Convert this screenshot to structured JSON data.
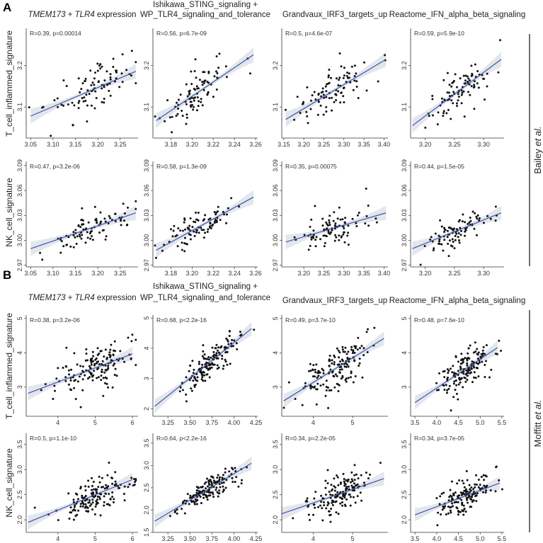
{
  "figure": {
    "letters": [
      "A",
      "B"
    ],
    "side_labels": [
      {
        "name": "Bailey",
        "suffix": "et al."
      },
      {
        "name": "Moffitt",
        "suffix": "et al."
      }
    ],
    "colors": {
      "point": "#111111",
      "line": "#3a55b4",
      "band": "#e3e6ea",
      "axis": "#333333"
    }
  },
  "chart_data": [
    {
      "type": "scatter",
      "section": "A",
      "row": 0,
      "col": 0,
      "title_parts": [
        {
          "text": "TMEM173",
          "italic": true
        },
        {
          "text": " + ",
          "italic": false
        },
        {
          "text": "TLR4",
          "italic": true
        },
        {
          "text": " expression",
          "italic": false
        }
      ],
      "ylabel": "T_cell_inflammed_signature",
      "annotation": "R=0.39, p=0.00014",
      "xlim": [
        3.04,
        3.29
      ],
      "ylim": [
        3.025,
        3.29
      ],
      "xticks": [
        "3.05",
        "3.10",
        "3.15",
        "3.20",
        "3.25"
      ],
      "yticks": [
        "3.1",
        "3.2"
      ],
      "fit": [
        [
          3.05,
          3.078
        ],
        [
          3.285,
          3.186
        ]
      ],
      "n": 90,
      "seed": 11,
      "spread": 0.055,
      "xcenter": 3.19,
      "xsd": 0.05
    },
    {
      "type": "scatter",
      "section": "A",
      "row": 0,
      "col": 1,
      "title_lines": [
        "Ishikawa_STING_signaling +",
        "WP_TLR4_signaling_and_tolerance"
      ],
      "ylabel": "",
      "annotation": "R=0.56, p=6.7e-09",
      "xlim": [
        3.163,
        3.262
      ],
      "ylim": [
        3.025,
        3.29
      ],
      "xticks": [
        "3.18",
        "3.20",
        "3.22",
        "3.24",
        "3.26"
      ],
      "yticks": [
        "3.1",
        "3.2"
      ],
      "fit": [
        [
          3.166,
          3.067
        ],
        [
          3.258,
          3.226
        ]
      ],
      "n": 90,
      "seed": 22,
      "spread": 0.045,
      "xcenter": 3.205,
      "xsd": 0.016
    },
    {
      "type": "scatter",
      "section": "A",
      "row": 0,
      "col": 2,
      "title_lines": [
        "Grandvaux_IRF3_targets_up"
      ],
      "ylabel": "",
      "annotation": "R=0.5, p=4.6e-07",
      "xlim": [
        3.145,
        3.41
      ],
      "ylim": [
        3.025,
        3.29
      ],
      "xticks": [
        "3.15",
        "3.20",
        "3.25",
        "3.30",
        "3.35",
        "3.40"
      ],
      "yticks": [
        "3.1",
        "3.2"
      ],
      "fit": [
        [
          3.155,
          3.07
        ],
        [
          3.405,
          3.215
        ]
      ],
      "n": 90,
      "seed": 33,
      "spread": 0.05,
      "xcenter": 3.27,
      "xsd": 0.045
    },
    {
      "type": "scatter",
      "section": "A",
      "row": 0,
      "col": 3,
      "title_lines": [
        "Reactome_IFN_alpha_beta_signaling"
      ],
      "ylabel": "",
      "annotation": "R=0.59, p=5.9e-10",
      "xlim": [
        3.175,
        3.335
      ],
      "ylim": [
        3.025,
        3.29
      ],
      "xticks": [
        "3.20",
        "3.25",
        "3.30"
      ],
      "yticks": [
        "3.1",
        "3.2"
      ],
      "fit": [
        [
          3.178,
          3.055
        ],
        [
          3.33,
          3.215
        ]
      ],
      "n": 90,
      "seed": 44,
      "spread": 0.045,
      "xcenter": 3.26,
      "xsd": 0.028
    },
    {
      "type": "scatter",
      "section": "A",
      "row": 1,
      "col": 0,
      "ylabel": "NK_cell_signature",
      "annotation": "R=0.47, p=3.2e-06",
      "xlim": [
        3.04,
        3.29
      ],
      "ylim": [
        2.968,
        3.095
      ],
      "xticks": [
        "3.05",
        "3.10",
        "3.15",
        "3.20",
        "3.25"
      ],
      "yticks": [
        "2.97",
        "3.00",
        "3.03",
        "3.06",
        "3.09"
      ],
      "fit": [
        [
          3.05,
          2.99
        ],
        [
          3.285,
          3.033
        ]
      ],
      "n": 90,
      "seed": 55,
      "spread": 0.018,
      "xcenter": 3.19,
      "xsd": 0.05
    },
    {
      "type": "scatter",
      "section": "A",
      "row": 1,
      "col": 1,
      "ylabel": "",
      "annotation": "R=0.58, p=1.3e-09",
      "xlim": [
        3.163,
        3.262
      ],
      "ylim": [
        2.968,
        3.095
      ],
      "xticks": [
        "3.18",
        "3.20",
        "3.22",
        "3.24",
        "3.26"
      ],
      "yticks": [
        "2.97",
        "3.00",
        "3.03",
        "3.06",
        "3.09"
      ],
      "fit": [
        [
          3.166,
          2.988
        ],
        [
          3.258,
          3.052
        ]
      ],
      "n": 90,
      "seed": 66,
      "spread": 0.017,
      "xcenter": 3.205,
      "xsd": 0.016
    },
    {
      "type": "scatter",
      "section": "A",
      "row": 1,
      "col": 2,
      "ylabel": "",
      "annotation": "R=0.35, p=0.00075",
      "xlim": [
        3.145,
        3.41
      ],
      "ylim": [
        2.968,
        3.095
      ],
      "xticks": [
        "3.20",
        "3.25",
        "3.30",
        "3.35",
        "3.40"
      ],
      "yticks": [
        "2.97",
        "3.00",
        "3.03",
        "3.06",
        "3.09"
      ],
      "fit": [
        [
          3.155,
          2.998
        ],
        [
          3.405,
          3.033
        ]
      ],
      "n": 90,
      "seed": 77,
      "spread": 0.019,
      "xcenter": 3.27,
      "xsd": 0.045
    },
    {
      "type": "scatter",
      "section": "A",
      "row": 1,
      "col": 3,
      "ylabel": "",
      "annotation": "R=0.44, p=1.5e-05",
      "xlim": [
        3.175,
        3.335
      ],
      "ylim": [
        2.968,
        3.095
      ],
      "xticks": [
        "3.20",
        "3.25",
        "3.30"
      ],
      "yticks": [
        "2.97",
        "3.00",
        "3.03",
        "3.06",
        "3.09"
      ],
      "fit": [
        [
          3.178,
          2.99
        ],
        [
          3.33,
          3.033
        ]
      ],
      "n": 90,
      "seed": 88,
      "spread": 0.017,
      "xcenter": 3.26,
      "xsd": 0.028
    },
    {
      "type": "scatter",
      "section": "B",
      "row": 2,
      "col": 0,
      "title_parts": [
        {
          "text": "TMEM173",
          "italic": true
        },
        {
          "text": " + ",
          "italic": false
        },
        {
          "text": "TLR4",
          "italic": true
        },
        {
          "text": " expression",
          "italic": false
        }
      ],
      "ylabel": "T_cell_inflammed_signature",
      "annotation": "R=0.38, p=3.2e-06",
      "xlim": [
        3.15,
        6.15
      ],
      "ylim": [
        2.15,
        5.1
      ],
      "xticks": [
        "4",
        "5",
        "6"
      ],
      "yticks": [
        "3",
        "4",
        "5"
      ],
      "fit": [
        [
          3.2,
          2.82
        ],
        [
          6.0,
          3.97
        ]
      ],
      "n": 150,
      "seed": 99,
      "spread": 0.6,
      "xcenter": 5.0,
      "xsd": 0.5
    },
    {
      "type": "scatter",
      "section": "B",
      "row": 2,
      "col": 1,
      "title_lines": [
        "Ishikawa_STING_signaling +",
        "WP_TLR4_signaling_and_tolerance"
      ],
      "ylabel": "",
      "annotation": "R=0.68, p<2.2e-16",
      "xlim": [
        3.08,
        4.27
      ],
      "ylim": [
        1.75,
        5.1
      ],
      "xticks": [
        "3.25",
        "3.50",
        "3.75",
        "4.00",
        "4.25"
      ],
      "yticks": [
        "2",
        "3",
        "4",
        "5"
      ],
      "fit": [
        [
          3.1,
          2.08
        ],
        [
          4.2,
          4.65
        ]
      ],
      "n": 150,
      "seed": 111,
      "spread": 0.45,
      "xcenter": 3.72,
      "xsd": 0.17
    },
    {
      "type": "scatter",
      "section": "B",
      "row": 2,
      "col": 2,
      "title_lines": [
        "Grandvaux_IRF3_targets_up"
      ],
      "ylabel": "",
      "annotation": "R=0.49, p=3.7e-10",
      "xlim": [
        3.2,
        5.9
      ],
      "ylim": [
        2.15,
        5.1
      ],
      "xticks": [
        "4",
        "5"
      ],
      "yticks": [
        "3",
        "4",
        "5"
      ],
      "fit": [
        [
          3.25,
          2.6
        ],
        [
          5.8,
          4.42
        ]
      ],
      "n": 150,
      "seed": 122,
      "spread": 0.55,
      "xcenter": 4.6,
      "xsd": 0.4
    },
    {
      "type": "scatter",
      "section": "B",
      "row": 2,
      "col": 3,
      "title_lines": [
        "Reactome_IFN_alpha_beta_signaling"
      ],
      "ylabel": "",
      "annotation": "R=0.48, p=7.6e-10",
      "xlim": [
        3.4,
        5.55
      ],
      "ylim": [
        2.15,
        5.1
      ],
      "xticks": [
        "3.5",
        "4.0",
        "4.5",
        "5.0",
        "5.5"
      ],
      "yticks": [
        "3",
        "4",
        "5"
      ],
      "fit": [
        [
          3.5,
          2.55
        ],
        [
          5.4,
          4.15
        ]
      ],
      "n": 150,
      "seed": 133,
      "spread": 0.55,
      "xcenter": 4.65,
      "xsd": 0.32
    },
    {
      "type": "scatter",
      "section": "B",
      "row": 3,
      "col": 0,
      "ylabel": "NK_cell_signature",
      "annotation": "R=0.5, p=1.1e-10",
      "xlim": [
        3.15,
        6.15
      ],
      "ylim": [
        1.75,
        3.72
      ],
      "xticks": [
        "4",
        "5",
        "6"
      ],
      "yticks": [
        "2.0",
        "2.5",
        "3.0",
        "3.5"
      ],
      "fit": [
        [
          3.2,
          1.95
        ],
        [
          6.0,
          2.8
        ]
      ],
      "n": 150,
      "seed": 144,
      "spread": 0.3,
      "xcenter": 5.0,
      "xsd": 0.5
    },
    {
      "type": "scatter",
      "section": "B",
      "row": 3,
      "col": 1,
      "ylabel": "",
      "annotation": "R=0.64, p<2.2e-16",
      "xlim": [
        3.08,
        4.27
      ],
      "ylim": [
        1.5,
        3.72
      ],
      "xticks": [
        "3.25",
        "3.50",
        "3.75",
        "4.00",
        "4.25"
      ],
      "yticks": [
        "1.5",
        "2.0",
        "2.5",
        "3.0",
        "3.5"
      ],
      "fit": [
        [
          3.1,
          1.75
        ],
        [
          4.2,
          3.05
        ]
      ],
      "n": 150,
      "seed": 155,
      "spread": 0.25,
      "xcenter": 3.72,
      "xsd": 0.17
    },
    {
      "type": "scatter",
      "section": "B",
      "row": 3,
      "col": 2,
      "ylabel": "",
      "annotation": "R=0.34, p=2.2e-05",
      "xlim": [
        3.2,
        5.9
      ],
      "ylim": [
        1.75,
        3.72
      ],
      "xticks": [
        "4",
        "5"
      ],
      "yticks": [
        "2.0",
        "2.5",
        "3.0",
        "3.5"
      ],
      "fit": [
        [
          3.2,
          2.12
        ],
        [
          5.8,
          2.82
        ]
      ],
      "n": 150,
      "seed": 166,
      "spread": 0.3,
      "xcenter": 4.6,
      "xsd": 0.4
    },
    {
      "type": "scatter",
      "section": "B",
      "row": 3,
      "col": 3,
      "ylabel": "",
      "annotation": "R=0.34, p=3.7e-05",
      "xlim": [
        3.4,
        5.55
      ],
      "ylim": [
        1.75,
        3.72
      ],
      "xticks": [
        "3.5",
        "4.0",
        "4.5",
        "5.0",
        "5.5"
      ],
      "yticks": [
        "2.0",
        "2.5",
        "3.0",
        "3.5"
      ],
      "fit": [
        [
          3.5,
          2.1
        ],
        [
          5.45,
          2.73
        ]
      ],
      "n": 150,
      "seed": 177,
      "spread": 0.3,
      "xcenter": 4.65,
      "xsd": 0.32
    }
  ]
}
